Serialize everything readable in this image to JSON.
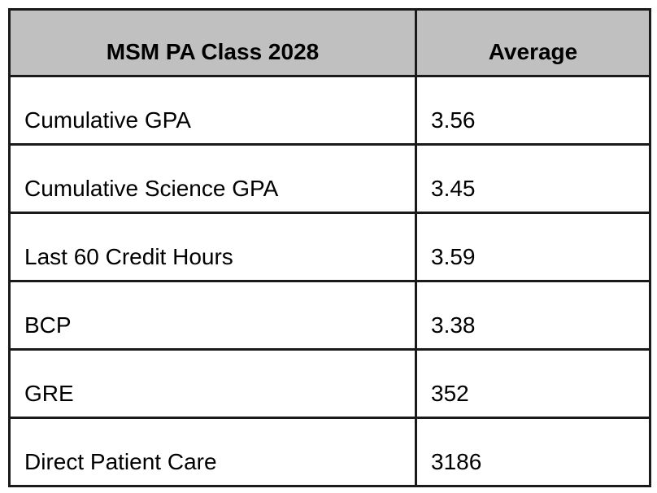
{
  "chart_data": {
    "type": "table",
    "title": "MSM PA Class 2028",
    "columns": [
      "MSM PA Class 2028",
      "Average"
    ],
    "rows": [
      {
        "label": "Cumulative GPA",
        "value": "3.56"
      },
      {
        "label": "Cumulative Science GPA",
        "value": "3.45"
      },
      {
        "label": "Last 60 Credit Hours",
        "value": "3.59"
      },
      {
        "label": "BCP",
        "value": "3.38"
      },
      {
        "label": "GRE",
        "value": "352"
      },
      {
        "label": "Direct Patient Care",
        "value": "3186"
      }
    ],
    "layout": {
      "header_align": "center",
      "cell_align": "left",
      "cell_vertical_align": "bottom",
      "grid": true
    },
    "colors": {
      "header_bg": "#c0c0c0",
      "border": "#1a1a1a",
      "text": "#000000",
      "page_bg": "#ffffff"
    }
  }
}
